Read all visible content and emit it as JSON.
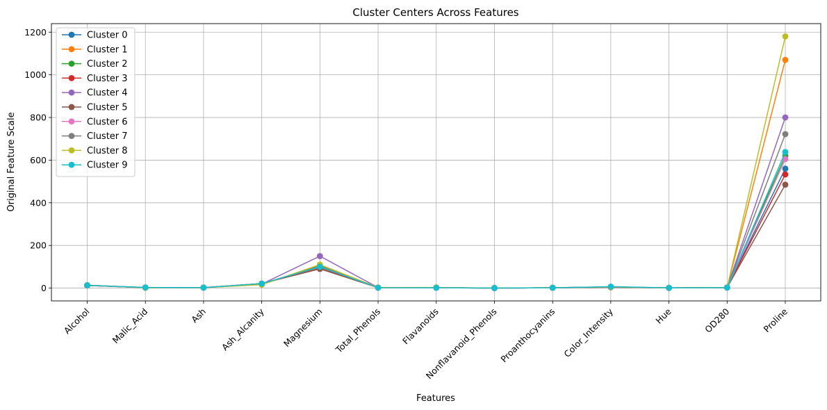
{
  "chart_data": {
    "type": "line",
    "title": "Cluster Centers Across Features",
    "xlabel": "Features",
    "ylabel": "Original Feature Scale",
    "categories": [
      "Alcohol",
      "Malic_Acid",
      "Ash",
      "Ash_Alcanity",
      "Magnesium",
      "Total_Phenols",
      "Flavanoids",
      "Nonflavanoid_Phenols",
      "Proanthocyanins",
      "Color_Intensity",
      "Hue",
      "OD280",
      "Proline"
    ],
    "ylim": [
      -60,
      1240
    ],
    "yticks": [
      0,
      200,
      400,
      600,
      800,
      1000,
      1200
    ],
    "grid": true,
    "legend_position": "upper-left",
    "series": [
      {
        "name": "Cluster 0",
        "color": "#1f77b4",
        "values": [
          13.0,
          2.4,
          2.4,
          20.0,
          100,
          2.3,
          2.0,
          0.4,
          1.6,
          5.0,
          1.0,
          2.6,
          560
        ]
      },
      {
        "name": "Cluster 1",
        "color": "#ff7f0e",
        "values": [
          13.7,
          2.0,
          2.4,
          17.0,
          105,
          2.8,
          2.9,
          0.3,
          1.9,
          5.6,
          1.07,
          3.0,
          1070
        ]
      },
      {
        "name": "Cluster 2",
        "color": "#2ca02c",
        "values": [
          12.9,
          2.5,
          2.4,
          21.0,
          98,
          2.3,
          2.0,
          0.4,
          1.6,
          5.2,
          0.95,
          2.6,
          620
        ]
      },
      {
        "name": "Cluster 3",
        "color": "#d62728",
        "values": [
          12.7,
          2.8,
          2.4,
          21.0,
          92,
          2.1,
          1.7,
          0.4,
          1.5,
          5.3,
          0.9,
          2.4,
          533
        ]
      },
      {
        "name": "Cluster 4",
        "color": "#9467bd",
        "values": [
          13.5,
          2.5,
          2.5,
          19.0,
          150,
          2.5,
          2.3,
          0.35,
          1.8,
          5.4,
          0.95,
          2.8,
          800
        ]
      },
      {
        "name": "Cluster 5",
        "color": "#8c564b",
        "values": [
          12.4,
          2.4,
          2.3,
          21.5,
          90,
          2.2,
          1.9,
          0.4,
          1.6,
          4.0,
          0.97,
          2.6,
          485
        ]
      },
      {
        "name": "Cluster 6",
        "color": "#e377c2",
        "values": [
          13.0,
          3.0,
          2.4,
          20.5,
          100,
          2.0,
          1.5,
          0.4,
          1.4,
          6.0,
          0.85,
          2.2,
          605
        ]
      },
      {
        "name": "Cluster 7",
        "color": "#7f7f7f",
        "values": [
          13.3,
          2.6,
          2.4,
          19.5,
          105,
          2.4,
          2.2,
          0.35,
          1.7,
          5.3,
          0.95,
          2.7,
          722
        ]
      },
      {
        "name": "Cluster 8",
        "color": "#bcbd22",
        "values": [
          13.8,
          1.8,
          2.4,
          16.0,
          110,
          2.9,
          3.0,
          0.3,
          2.0,
          5.7,
          1.08,
          3.1,
          1180
        ]
      },
      {
        "name": "Cluster 9",
        "color": "#17becf",
        "values": [
          13.1,
          3.0,
          2.4,
          21.0,
          100,
          2.0,
          1.6,
          0.4,
          1.5,
          7.0,
          0.9,
          2.2,
          638
        ]
      }
    ]
  }
}
